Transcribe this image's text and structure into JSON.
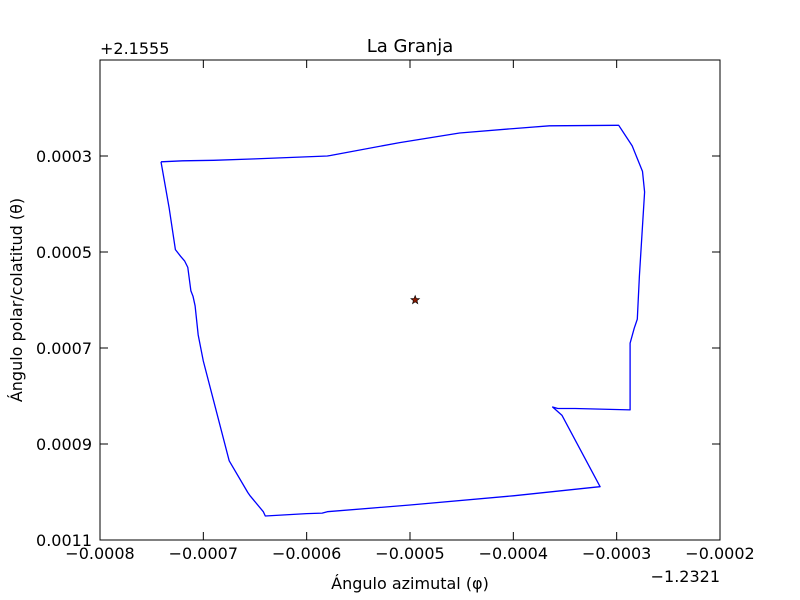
{
  "chart_data": {
    "type": "line",
    "title": "La Granja",
    "xlabel": "Ángulo azimutal (φ)",
    "ylabel": "Ángulo polar/colatitud (θ)",
    "x_offset_label": "−1.2321",
    "y_offset_label": "+2.1555",
    "xlim": [
      -0.0008,
      -0.0002
    ],
    "ylim": [
      0.0011,
      0.0001
    ],
    "y_inverted": true,
    "xticks": [
      -0.0008,
      -0.0007,
      -0.0006,
      -0.0005,
      -0.0004,
      -0.0003,
      -0.0002
    ],
    "xtick_labels": [
      "−0.0008",
      "−0.0007",
      "−0.0006",
      "−0.0005",
      "−0.0004",
      "−0.0003",
      "−0.0002"
    ],
    "yticks": [
      0.0003,
      0.0005,
      0.0007,
      0.0009,
      0.0011
    ],
    "ytick_labels": [
      "0.0003",
      "0.0005",
      "0.0007",
      "0.0009",
      "0.0011"
    ],
    "grid": false,
    "series": [
      {
        "line_color": "#0000ff",
        "x": [
          -0.000741,
          -0.00072,
          -0.00069,
          -0.00065,
          -0.00058,
          -0.000577,
          -0.00051,
          -0.000452,
          -0.0004,
          -0.000365,
          -0.0003,
          -0.000298,
          -0.000285,
          -0.000275,
          -0.000273,
          -0.000278,
          -0.00028,
          -0.000283,
          -0.000287,
          -0.000287,
          -0.00034,
          -0.000357,
          -0.000362,
          -0.000353,
          -0.000316,
          -0.000321,
          -0.0004,
          -0.0005,
          -0.00058,
          -0.000585,
          -0.0006,
          -0.00064,
          -0.000642,
          -0.000655,
          -0.000657,
          -0.000675,
          -0.0007,
          -0.000705,
          -0.000708,
          -0.00071,
          -0.000712,
          -0.000715,
          -0.000718,
          -0.000722,
          -0.000727,
          -0.000733,
          -0.000741
        ],
        "y": [
          0.000312,
          0.00031,
          0.000309,
          0.000306,
          0.0003,
          0.000299,
          0.000272,
          0.000252,
          0.000243,
          0.000237,
          0.000236,
          0.000236,
          0.000279,
          0.000332,
          0.000375,
          0.00055,
          0.00064,
          0.000659,
          0.00069,
          0.000829,
          0.000826,
          0.000826,
          0.000823,
          0.00084,
          0.000989,
          0.00099,
          0.001008,
          0.001027,
          0.001041,
          0.001044,
          0.001045,
          0.00105,
          0.001041,
          0.001007,
          0.001001,
          0.000935,
          0.000727,
          0.000673,
          0.000612,
          0.000592,
          0.000581,
          0.000532,
          0.000519,
          0.000509,
          0.000495,
          0.000409,
          0.000312
        ]
      }
    ],
    "marker_point": {
      "marker_color": "#8b1a00",
      "x": -0.000495,
      "y": 0.0006
    }
  }
}
